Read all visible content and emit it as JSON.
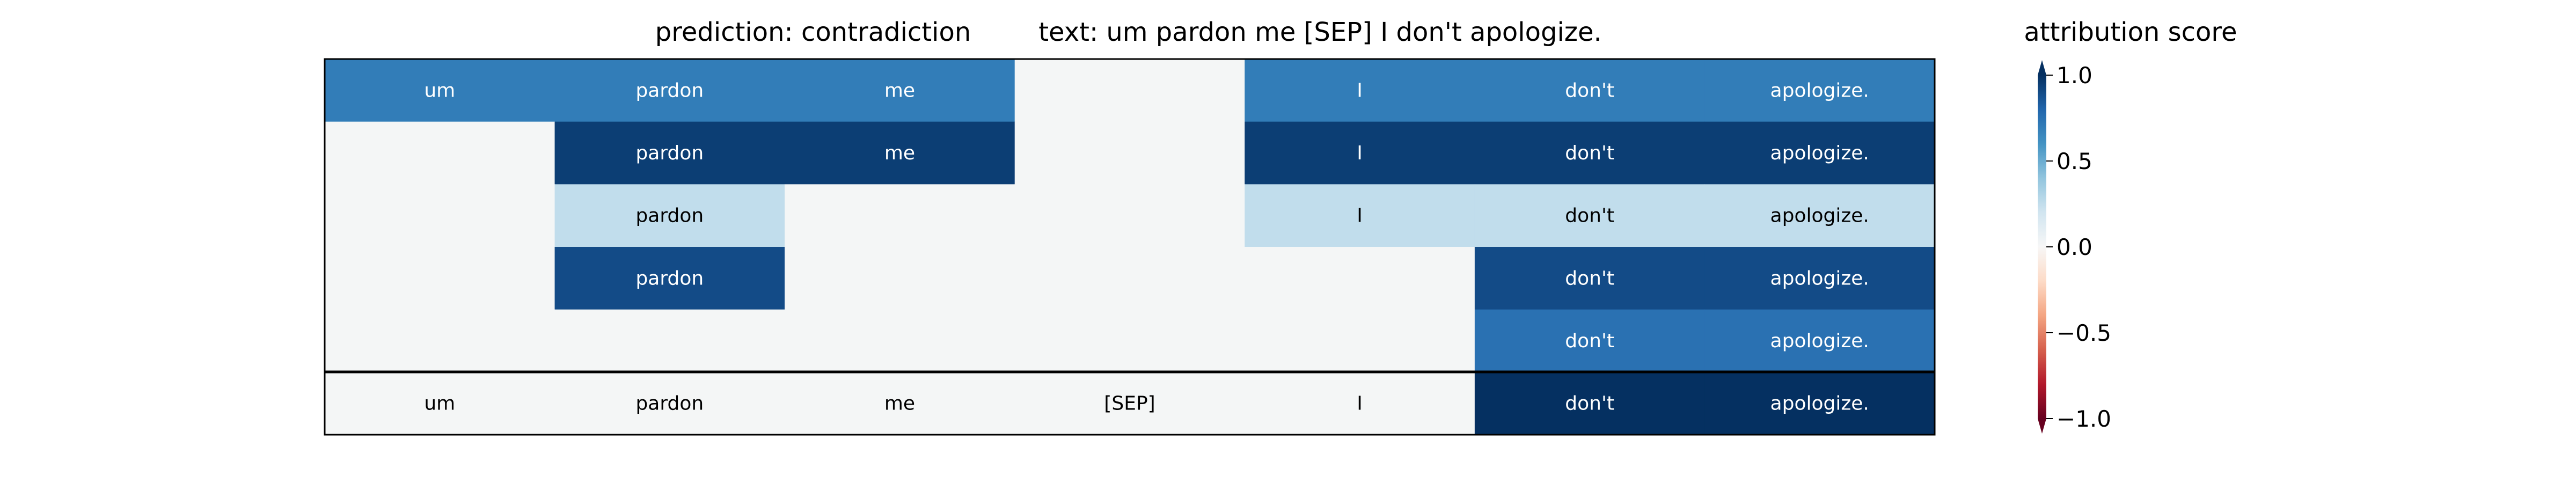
{
  "chart_data": {
    "type": "heatmap",
    "title_prediction": "prediction:  contradiction",
    "title_text": "text:  um pardon me [SEP] I don't apologize.",
    "tokens": [
      "um",
      "pardon",
      "me",
      "[SEP]",
      "I",
      "don't",
      "apologize."
    ],
    "rows": [
      {
        "labels": [
          "um",
          "pardon",
          "me",
          "",
          "I",
          "don't",
          "apologize."
        ],
        "values": [
          0.7,
          0.7,
          0.7,
          0.0,
          0.7,
          0.7,
          0.7
        ]
      },
      {
        "labels": [
          "",
          "pardon",
          "me",
          "",
          "I",
          "don't",
          "apologize."
        ],
        "values": [
          0.0,
          0.95,
          0.95,
          0.0,
          0.95,
          0.95,
          0.95
        ]
      },
      {
        "labels": [
          "",
          "pardon",
          "",
          "",
          "I",
          "don't",
          "apologize."
        ],
        "values": [
          0.0,
          0.25,
          0.0,
          0.0,
          0.25,
          0.25,
          0.25
        ]
      },
      {
        "labels": [
          "",
          "pardon",
          "",
          "",
          "",
          "don't",
          "apologize."
        ],
        "values": [
          0.0,
          0.9,
          0.0,
          0.0,
          0.0,
          0.9,
          0.9
        ]
      },
      {
        "labels": [
          "",
          "",
          "",
          "",
          "",
          "don't",
          "apologize."
        ],
        "values": [
          0.0,
          0.0,
          0.0,
          0.0,
          0.0,
          0.75,
          0.75
        ]
      }
    ],
    "total_row": {
      "labels": [
        "um",
        "pardon",
        "me",
        "[SEP]",
        "I",
        "don't",
        "apologize."
      ],
      "values": [
        0.0,
        0.0,
        0.0,
        0.0,
        0.0,
        1.0,
        1.0
      ]
    },
    "colorbar": {
      "label": "attribution score",
      "ticks": [
        "1.0",
        "0.5",
        "0.0",
        "−0.5",
        "−1.0"
      ],
      "tick_values": [
        1.0,
        0.5,
        0.0,
        -0.5,
        -1.0
      ],
      "range": [
        -1.0,
        1.0
      ],
      "colormap": "RdBu"
    }
  }
}
